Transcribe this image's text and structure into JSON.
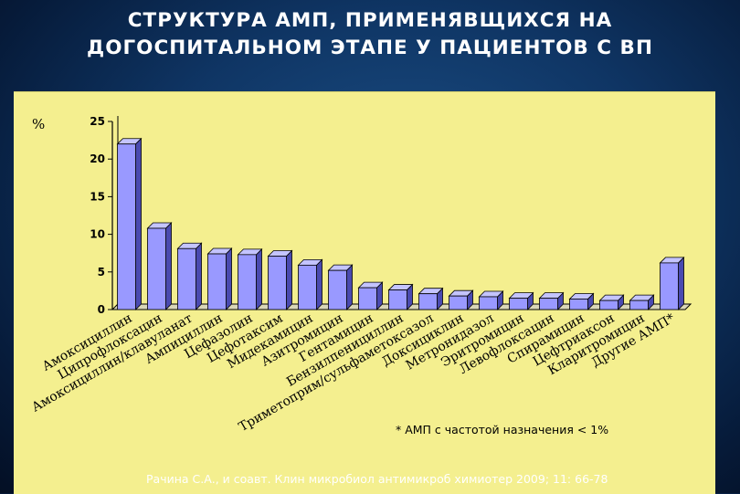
{
  "slide": {
    "title_line1": "СТРУКТУРА АМП, ПРИМЕНЯВЩИХСЯ НА",
    "title_line2": "ДОГОСПИТАЛЬНОМ ЭТАПЕ  У ПАЦИЕНТОВ С ВП",
    "footnote": "* АМП с частотой назначения < 1%",
    "source": "Рачина С.А., и соавт. Клин микробиол антимикроб химиотер 2009; 11: 66-78"
  },
  "colors": {
    "background": "#0f3564",
    "panel": "#f4ef8f",
    "bar_front": "#9999ff",
    "bar_top": "#c4c4ff",
    "bar_side": "#4a4ab0",
    "title_text": "#ffffff"
  },
  "chart_data": {
    "type": "bar",
    "title": "",
    "ylabel": "%",
    "xlabel": "",
    "ylim": [
      0,
      25
    ],
    "yticks": [
      0,
      5,
      10,
      15,
      20,
      25
    ],
    "grid": false,
    "categories": [
      "Амоксициллин",
      "Ципрофлоксацин",
      "Амоксициллин/клавуланат",
      "Ампициллин",
      "Цефазолин",
      "Цефотаксим",
      "Мидекамицин",
      "Азитромицин",
      "Гентамицин",
      "Бензилпенициллин",
      "Триметоприм/сульфаметоксазол",
      "Доксициклин",
      "Метронидазол",
      "Эритромицин",
      "Левофлоксацин",
      "Спирамицин",
      "Цефтриаксон",
      "Кларитромицин",
      "Другие АМП*"
    ],
    "values": [
      22,
      10.8,
      8.1,
      7.4,
      7.3,
      7.1,
      5.9,
      5.2,
      2.9,
      2.6,
      2.1,
      1.8,
      1.7,
      1.5,
      1.5,
      1.4,
      1.2,
      1.2,
      6.2
    ]
  }
}
